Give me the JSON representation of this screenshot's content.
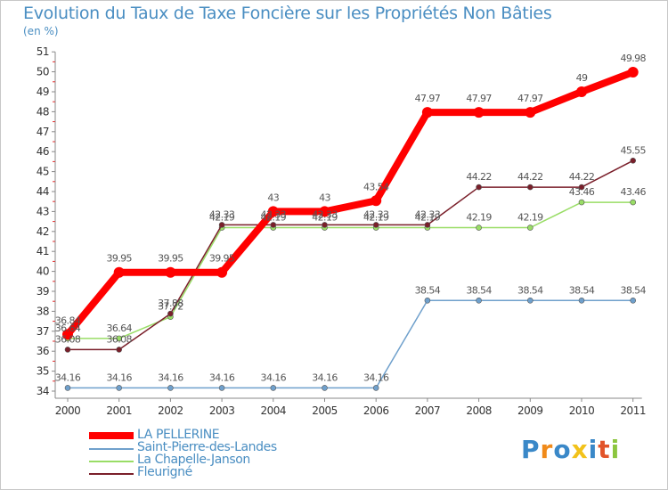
{
  "title": "Evolution du Taux de Taxe Foncière sur les Propriétés Non Bâties",
  "unit_label": "(en %)",
  "chart_data": {
    "type": "line",
    "title": "Evolution du Taux de Taxe Foncière sur les Propriétés Non Bâties",
    "ylabel": "(en %)",
    "xlabel": "",
    "ylim": [
      34,
      51
    ],
    "yticks": [
      "34",
      "35",
      "36",
      "37",
      "38",
      "39",
      "40",
      "41",
      "42",
      "43",
      "44",
      "45",
      "46",
      "47",
      "48",
      "49",
      "50",
      "51"
    ],
    "categories": [
      "2000",
      "2001",
      "2002",
      "2003",
      "2004",
      "2005",
      "2006",
      "2007",
      "2008",
      "2009",
      "2010",
      "2011"
    ],
    "grid": false,
    "series": [
      {
        "name": "LA PELLERINE",
        "color": "#ff0000",
        "values": [
          36.84,
          39.95,
          39.95,
          39.95,
          43,
          43,
          43.54,
          47.97,
          47.97,
          47.97,
          49,
          49.98
        ],
        "labels": [
          "36.84",
          "39.95",
          "39.95",
          "39.95",
          "43",
          "43",
          "43.54",
          "47.97",
          "47.97",
          "47.97",
          "49",
          "49.98"
        ]
      },
      {
        "name": "Saint-Pierre-des-Landes",
        "color": "#6fa0cc",
        "values": [
          34.16,
          34.16,
          34.16,
          34.16,
          34.16,
          34.16,
          34.16,
          38.54,
          38.54,
          38.54,
          38.54,
          38.54
        ],
        "labels": [
          "34.16",
          "34.16",
          "34.16",
          "34.16",
          "34.16",
          "34.16",
          "34.16",
          "38.54",
          "38.54",
          "38.54",
          "38.54",
          "38.54"
        ]
      },
      {
        "name": "La Chapelle-Janson",
        "color": "#99dd66",
        "values": [
          36.64,
          36.64,
          37.72,
          42.19,
          42.19,
          42.19,
          42.19,
          42.19,
          42.19,
          42.19,
          43.46,
          43.46
        ],
        "labels": [
          "36.64",
          "36.64",
          "37.72",
          "42.19",
          "42.19",
          "42.19",
          "42.19",
          "42.19",
          "42.19",
          "42.19",
          "43.46",
          "43.46"
        ]
      },
      {
        "name": "Fleurigné",
        "color": "#7a1f2a",
        "values": [
          36.08,
          36.08,
          37.88,
          42.33,
          42.33,
          42.33,
          42.33,
          42.33,
          44.22,
          44.22,
          44.22,
          45.55
        ],
        "labels": [
          "36.08",
          "36.08",
          "37.88",
          "42.33",
          "42.33",
          "42.33",
          "42.33",
          "42.33",
          "44.22",
          "44.22",
          "44.22",
          "45.55"
        ]
      }
    ],
    "legend": "bottom-left"
  },
  "logo": {
    "letters": [
      "P",
      "r",
      "o",
      "x",
      "i",
      "t",
      "i"
    ],
    "colors": [
      "#3a88c8",
      "#f08a1a",
      "#3a88c8",
      "#f2c21a",
      "#3a88c8",
      "#e2542a",
      "#8cc63f"
    ]
  }
}
